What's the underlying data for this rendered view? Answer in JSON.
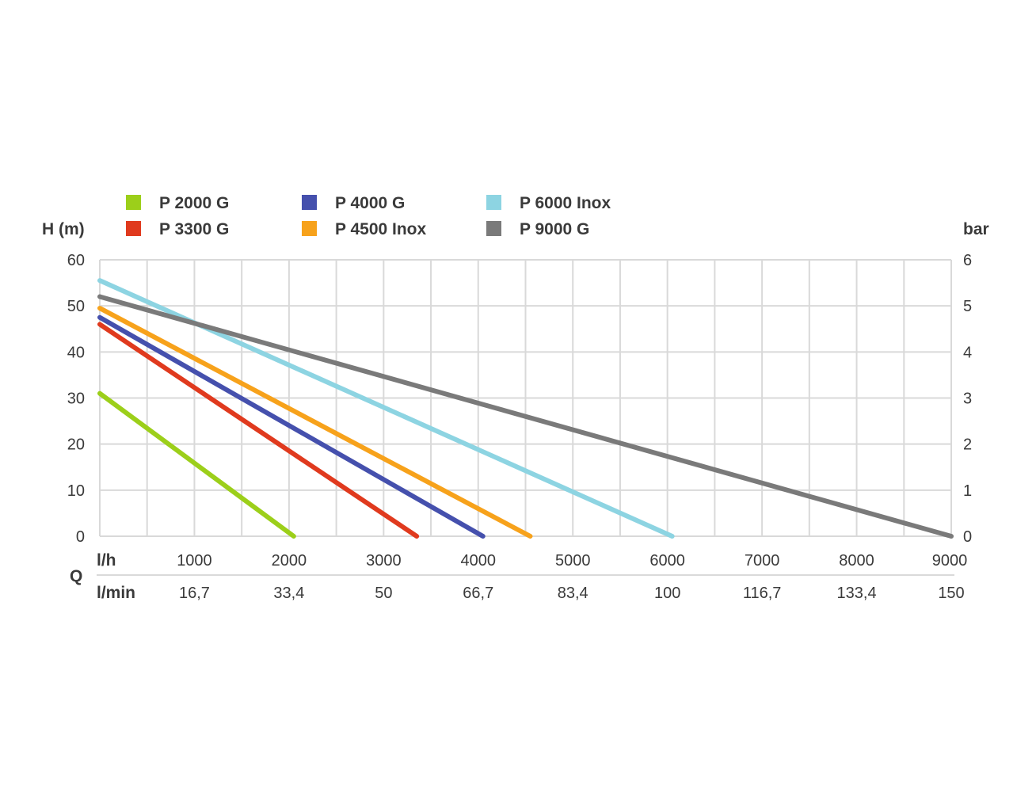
{
  "chart_data": {
    "type": "line",
    "title": "",
    "ylabel_left": "H (m)",
    "ylabel_right": "bar",
    "xlabel": "Q",
    "x_unit_primary": "l/h",
    "x_unit_secondary": "l/min",
    "xlim": [
      0,
      9000
    ],
    "ylim": [
      0,
      60
    ],
    "y2lim": [
      0,
      6
    ],
    "grid": true,
    "legend_position": "top",
    "x_ticks": [
      1000,
      2000,
      3000,
      4000,
      5000,
      6000,
      7000,
      8000,
      9000
    ],
    "x_tick_labels_primary": [
      "1000",
      "2000",
      "3000",
      "4000",
      "5000",
      "6000",
      "7000",
      "8000",
      "9000"
    ],
    "x_tick_labels_secondary": [
      "16,7",
      "33,4",
      "50",
      "66,7",
      "83,4",
      "100",
      "116,7",
      "133,4",
      "150"
    ],
    "y_ticks": [
      0,
      10,
      20,
      30,
      40,
      50,
      60
    ],
    "y_tick_labels": [
      "0",
      "10",
      "20",
      "30",
      "40",
      "50",
      "60"
    ],
    "y2_tick_labels": [
      "0",
      "1",
      "2",
      "3",
      "4",
      "5",
      "6"
    ],
    "series": [
      {
        "name": "P 2000 G",
        "color": "#9ccf1a",
        "x": [
          0,
          2050
        ],
        "y": [
          31,
          0
        ]
      },
      {
        "name": "P 3300 G",
        "color": "#e03a1e",
        "x": [
          0,
          3350
        ],
        "y": [
          46,
          0
        ]
      },
      {
        "name": "P 4000 G",
        "color": "#4550ad",
        "x": [
          0,
          4050
        ],
        "y": [
          47.5,
          0
        ]
      },
      {
        "name": "P 4500 Inox",
        "color": "#f7a21b",
        "x": [
          0,
          4550
        ],
        "y": [
          49.5,
          0
        ]
      },
      {
        "name": "P 6000 Inox",
        "color": "#8dd4e2",
        "x": [
          0,
          6050
        ],
        "y": [
          55.5,
          0
        ]
      },
      {
        "name": "P 9000 G",
        "color": "#7a7a7a",
        "x": [
          0,
          9000
        ],
        "y": [
          52,
          0
        ]
      }
    ]
  }
}
